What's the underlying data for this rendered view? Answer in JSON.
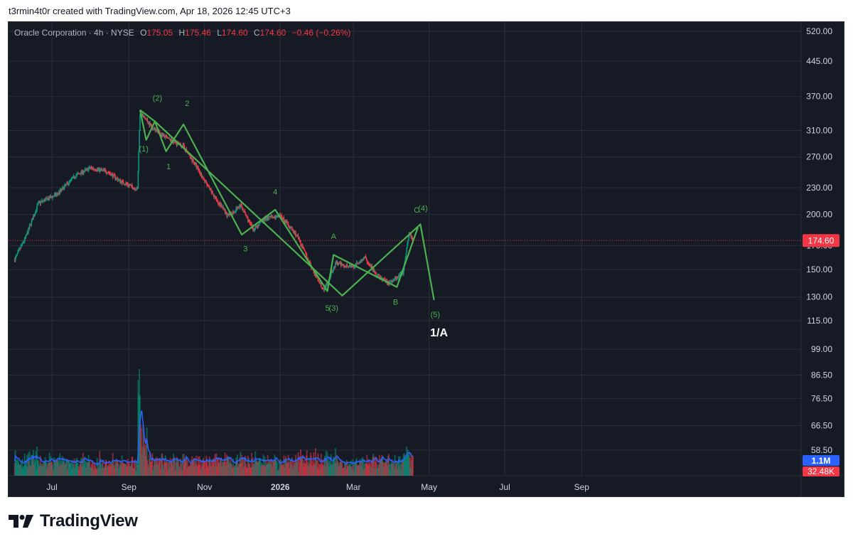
{
  "header": {
    "credit": "t3rmin4t0r created with TradingView.com, Apr 18, 2026 12:45 UTC+3"
  },
  "legend": {
    "symbol": "Oracle Corporation · 4h · NYSE",
    "o_label": "O",
    "o_value": "175.05",
    "h_label": "H",
    "h_value": "175.46",
    "l_label": "L",
    "l_value": "174.60",
    "c_label": "C",
    "c_value": "174.60",
    "change": "−0.46 (−0.26%)"
  },
  "footer": {
    "brand": "TradingView",
    "logo_icon": "tradingview-logo-icon"
  },
  "colors": {
    "background": "#161a25",
    "wave_line": "#4caf50",
    "wave_label": "#4caf50",
    "candle_up": "#089981",
    "candle_down": "#f23645",
    "volume_ma": "#2962ff",
    "price_tag": "#f23645",
    "volume_tag": "#2962ff"
  },
  "chart_data": {
    "type": "line",
    "y_scale": "log",
    "y_ticks": [
      "520.00",
      "445.00",
      "370.00",
      "310.00",
      "270.00",
      "230.00",
      "200.00",
      "170.00",
      "150.00",
      "130.00",
      "115.00",
      "99.00",
      "86.50",
      "76.50",
      "66.50",
      "58.50"
    ],
    "x_ticks": [
      "Jul",
      "Sep",
      "Nov",
      "2026",
      "Mar",
      "May",
      "Jul",
      "Sep"
    ],
    "last_price": "174.60",
    "volume_ma_value": "1.1M",
    "volume_value": "32.48K",
    "price_path": [
      [
        "2025-06-01",
        158
      ],
      [
        "2025-06-10",
        178
      ],
      [
        "2025-06-20",
        212
      ],
      [
        "2025-07-05",
        222
      ],
      [
        "2025-07-20",
        245
      ],
      [
        "2025-08-01",
        255
      ],
      [
        "2025-08-15",
        250
      ],
      [
        "2025-08-25",
        238
      ],
      [
        "2025-09-08",
        228
      ],
      [
        "2025-09-10",
        340
      ],
      [
        "2025-09-20",
        315
      ],
      [
        "2025-10-01",
        298
      ],
      [
        "2025-10-15",
        285
      ],
      [
        "2025-10-25",
        258
      ],
      [
        "2025-11-05",
        228
      ],
      [
        "2025-11-20",
        198
      ],
      [
        "2025-11-30",
        210
      ],
      [
        "2025-12-10",
        185
      ],
      [
        "2025-12-20",
        196
      ],
      [
        "2026-01-02",
        198
      ],
      [
        "2026-01-15",
        178
      ],
      [
        "2026-01-28",
        148
      ],
      [
        "2026-02-05",
        135
      ],
      [
        "2026-02-15",
        155
      ],
      [
        "2026-03-01",
        152
      ],
      [
        "2026-03-10",
        160
      ],
      [
        "2026-03-20",
        145
      ],
      [
        "2026-03-30",
        140
      ],
      [
        "2026-04-10",
        148
      ],
      [
        "2026-04-15",
        183
      ],
      [
        "2026-04-18",
        174.6
      ]
    ],
    "wave_primary": [
      {
        "date": "2025-09-10",
        "price": 345
      },
      {
        "date": "2025-09-15",
        "price": 295
      },
      {
        "date": "2025-09-22",
        "price": 325
      },
      {
        "date": "2025-10-01",
        "price": 278
      },
      {
        "date": "2025-10-15",
        "price": 320
      },
      {
        "date": "2025-12-01",
        "price": 180
      },
      {
        "date": "2025-12-28",
        "price": 205
      },
      {
        "date": "2026-02-08",
        "price": 134
      },
      {
        "date": "2026-02-13",
        "price": 162
      },
      {
        "date": "2026-04-05",
        "price": 137
      },
      {
        "date": "2026-04-22",
        "price": 187
      }
    ],
    "wave_secondary": [
      {
        "date": "2025-09-10",
        "price": 345
      },
      {
        "date": "2025-09-22",
        "price": 325
      },
      {
        "date": "2026-02-20",
        "price": 131
      },
      {
        "date": "2026-04-24",
        "price": 190
      },
      {
        "date": "2026-05-05",
        "price": 128
      }
    ],
    "wave_labels": [
      {
        "text": "(1)",
        "date": "2025-09-13",
        "price": 278
      },
      {
        "text": "(2)",
        "date": "2025-09-24",
        "price": 362
      },
      {
        "text": "1",
        "date": "2025-10-03",
        "price": 253
      },
      {
        "text": "2",
        "date": "2025-10-18",
        "price": 352
      },
      {
        "text": "3",
        "date": "2025-12-04",
        "price": 165
      },
      {
        "text": "4",
        "date": "2025-12-28",
        "price": 222
      },
      {
        "text": "A",
        "date": "2026-02-13",
        "price": 176
      },
      {
        "text": "5",
        "date": "2026-02-08",
        "price": 121
      },
      {
        "text": "(3)",
        "date": "2026-02-13",
        "price": 121
      },
      {
        "text": "B",
        "date": "2026-04-04",
        "price": 125
      },
      {
        "text": "C",
        "date": "2026-04-21",
        "price": 202
      },
      {
        "text": "(4)",
        "date": "2026-04-26",
        "price": 204
      },
      {
        "text": "(5)",
        "date": "2026-05-06",
        "price": 117
      }
    ],
    "big_label": {
      "text": "1/A",
      "date": "2026-05-09",
      "price": 106
    }
  }
}
